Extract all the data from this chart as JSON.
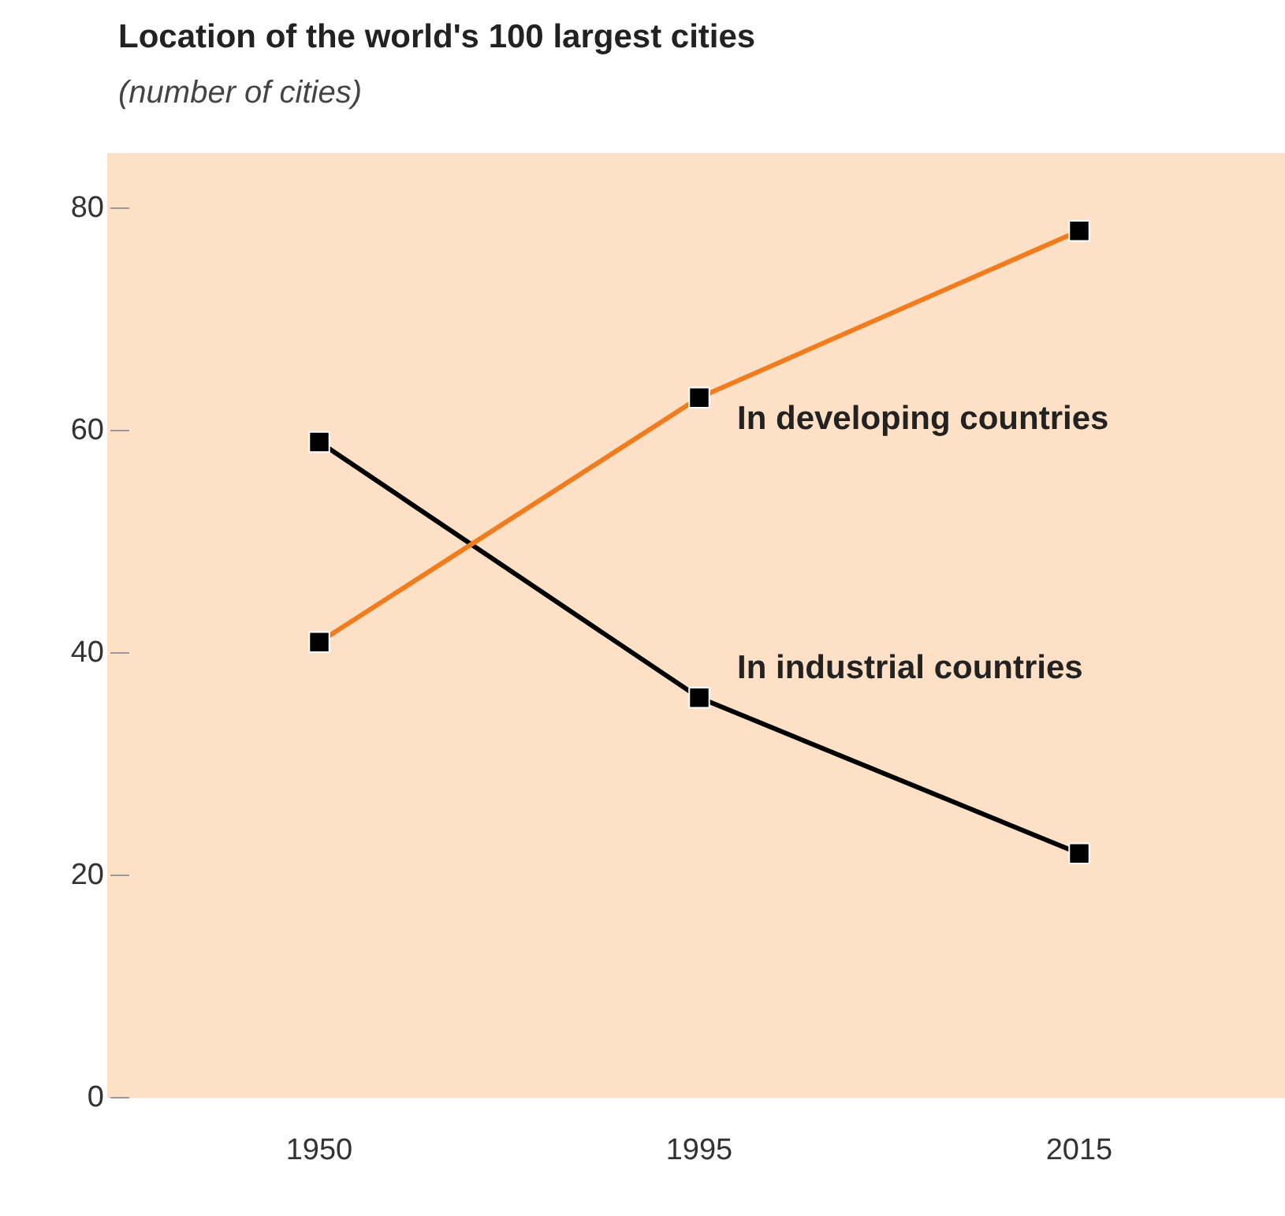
{
  "chart_data": {
    "type": "line",
    "title": "Location of the world's 100 largest cities",
    "subtitle": "(number of cities)",
    "categories": [
      "1950",
      "1995",
      "2015"
    ],
    "series": [
      {
        "name": "In developing countries",
        "color": "#f07c1e",
        "colors": [
          "#000000",
          "#000000",
          "#000000"
        ],
        "values": [
          41,
          63,
          78
        ]
      },
      {
        "name": "In industrial countries",
        "color": "#000000",
        "colors": [
          "#000000",
          "#000000",
          "#000000"
        ],
        "values": [
          59,
          36,
          22
        ]
      }
    ],
    "ylim": [
      0,
      85
    ],
    "yticks": [
      0,
      20,
      40,
      60,
      80
    ],
    "grid": false,
    "legend": false,
    "marker": "square",
    "line_style": "solid"
  }
}
